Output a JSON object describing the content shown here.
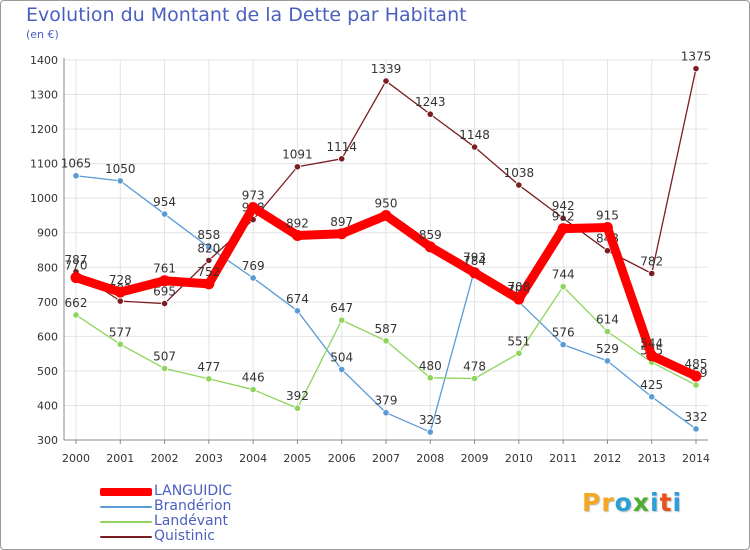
{
  "title": "Evolution du Montant de la Dette par Habitant",
  "unit_label": "(en €)",
  "logo": {
    "text": "Proxiti",
    "letters": [
      "P",
      "r",
      "o",
      "x",
      "i",
      "t",
      "i"
    ],
    "colors": [
      "#f5a623",
      "#f5a623",
      "#2d9fd8",
      "#4caf2e",
      "#2d9fd8",
      "#e8521a",
      "#2d9fd8"
    ]
  },
  "colors": {
    "text": "#4a5fc0",
    "grid": "#e3e3e3",
    "axis": "#8a8a8a"
  },
  "chart_data": {
    "type": "line",
    "x": [
      "2000",
      "2001",
      "2002",
      "2003",
      "2004",
      "2005",
      "2006",
      "2007",
      "2008",
      "2009",
      "2010",
      "2011",
      "2012",
      "2013",
      "2014"
    ],
    "ylim": [
      300,
      1400
    ],
    "yticks": [
      300,
      400,
      500,
      600,
      700,
      800,
      900,
      1000,
      1100,
      1200,
      1300,
      1400
    ],
    "grid": true,
    "legend_position": "bottom-left",
    "series": [
      {
        "name": "LANGUIDIC",
        "color": "#ff0000",
        "values": [
          770,
          728,
          761,
          752,
          973,
          892,
          897,
          950,
          859,
          784,
          708,
          912,
          915,
          544,
          485
        ]
      },
      {
        "name": "Brandérion",
        "color": "#5b9bd5",
        "values": [
          1065,
          1050,
          954,
          858,
          769,
          674,
          504,
          379,
          323,
          793,
          700,
          576,
          529,
          425,
          332
        ]
      },
      {
        "name": "Landévant",
        "color": "#8fd45c",
        "values": [
          662,
          577,
          507,
          477,
          446,
          392,
          647,
          587,
          480,
          478,
          551,
          744,
          614,
          525,
          459
        ]
      },
      {
        "name": "Quistinic",
        "color": "#7b1e22",
        "values": [
          787,
          702,
          695,
          820,
          938,
          1091,
          1114,
          1339,
          1243,
          1148,
          1038,
          942,
          848,
          782,
          1375
        ]
      }
    ]
  }
}
